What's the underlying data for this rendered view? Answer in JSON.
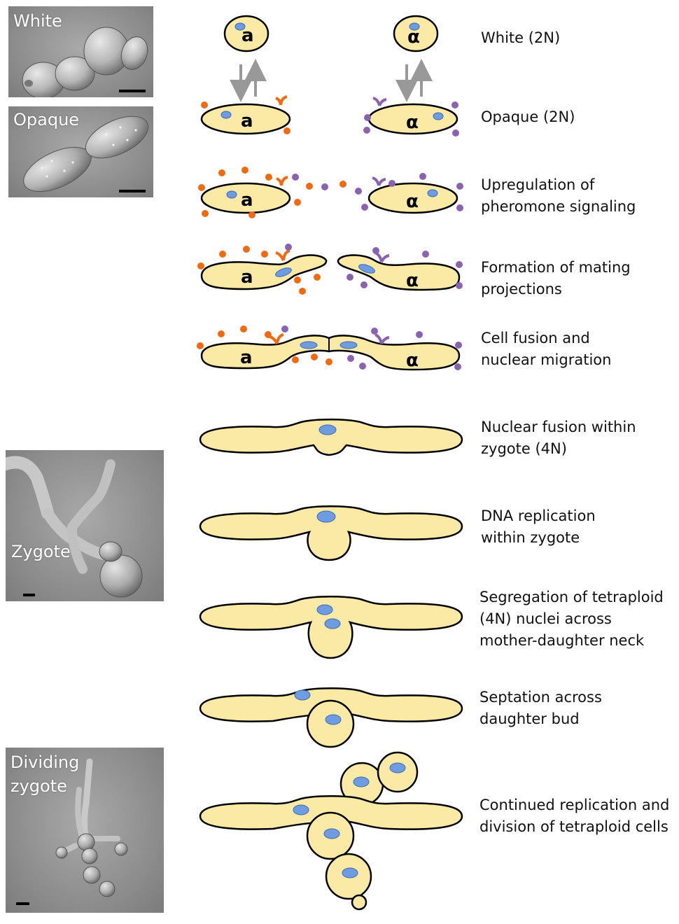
{
  "photos": [
    {
      "id": "white",
      "label": "White"
    },
    {
      "id": "opaque",
      "label": "Opaque"
    },
    {
      "id": "zygote",
      "label": "Zygote"
    },
    {
      "id": "dividing",
      "label": "Dividing\nzygote"
    }
  ],
  "mating_types": {
    "a": "a",
    "alpha": "α"
  },
  "stages": [
    {
      "label": "White (2N)"
    },
    {
      "label": "Opaque (2N)"
    },
    {
      "label": "Upregulation of\npheromone signaling"
    },
    {
      "label": "Formation of mating\nprojections"
    },
    {
      "label": "Cell fusion and\nnuclear migration"
    },
    {
      "label": "Nuclear fusion within\nzygote (4N)"
    },
    {
      "label": "DNA replication\nwithin zygote"
    },
    {
      "label": "Segregation of tetraploid\n(4N) nuclei across\nmother-daughter neck"
    },
    {
      "label": "Septation across\ndaughter bud"
    },
    {
      "label": "Continued replication and\ndivision of tetraploid cells"
    }
  ],
  "colors": {
    "cell_fill": "#fbe9a6",
    "nucleus": "#6f9be0",
    "pheromone_a": "#f26a10",
    "pheromone_alpha": "#8a62b0",
    "arrow": "#999999",
    "outline": "#000000"
  }
}
